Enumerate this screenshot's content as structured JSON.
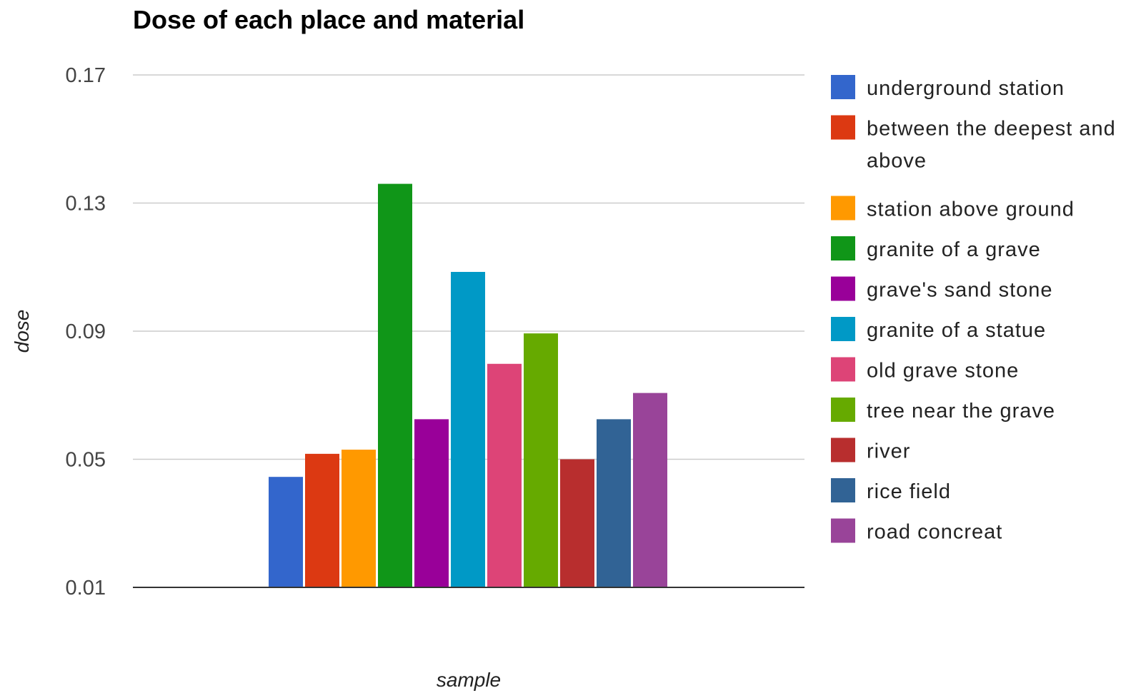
{
  "chart_data": {
    "type": "bar",
    "title": "Dose of each place and material",
    "xlabel": "sample",
    "ylabel": "dose",
    "ylim": [
      0.01,
      0.17
    ],
    "yticks": [
      "0.17",
      "0.13",
      "0.09",
      "0.05",
      "0.01"
    ],
    "grid": true,
    "legend_position": "right",
    "series": [
      {
        "name": "underground station",
        "value": 0.0445,
        "color": "#3366cc",
        "legend_lines": [
          "underground station"
        ]
      },
      {
        "name": "between the deepest and above",
        "value": 0.0517,
        "color": "#dc3912",
        "legend_lines": [
          "between the deepest and",
          "above"
        ]
      },
      {
        "name": "station above ground",
        "value": 0.053,
        "color": "#ff9900",
        "legend_lines": [
          "station above ground"
        ]
      },
      {
        "name": "granite of a grave",
        "value": 0.136,
        "color": "#109618",
        "legend_lines": [
          "granite of a grave"
        ]
      },
      {
        "name": "grave's sand stone",
        "value": 0.0625,
        "color": "#990099",
        "legend_lines": [
          "grave's sand stone"
        ]
      },
      {
        "name": "granite of a statue",
        "value": 0.1085,
        "color": "#0099c6",
        "legend_lines": [
          "granite of a statue"
        ]
      },
      {
        "name": "old grave stone",
        "value": 0.0798,
        "color": "#dd4477",
        "legend_lines": [
          "old grave stone"
        ]
      },
      {
        "name": "tree near the grave",
        "value": 0.0893,
        "color": "#66aa00",
        "legend_lines": [
          "tree near the grave"
        ]
      },
      {
        "name": "river",
        "value": 0.05,
        "color": "#b82e2e",
        "legend_lines": [
          "river"
        ]
      },
      {
        "name": "rice field",
        "value": 0.0625,
        "color": "#316395",
        "legend_lines": [
          "rice field"
        ]
      },
      {
        "name": "road concreat",
        "value": 0.0707,
        "color": "#994499",
        "legend_lines": [
          "road concreat"
        ]
      }
    ]
  }
}
